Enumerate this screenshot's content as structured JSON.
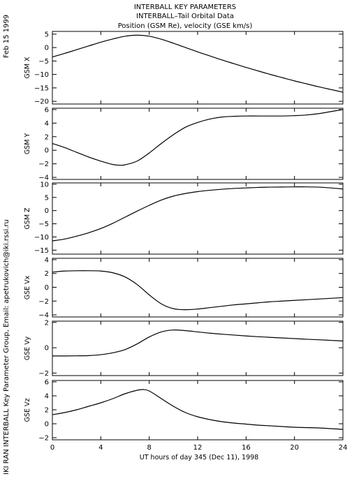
{
  "header": {
    "date": "Feb 15 1999",
    "side_credit": "IKI RAN INTERBALL Key Parameter Group, Email: apetrukovich@iki.rssi.ru",
    "title_lines": [
      "INTERBALL KEY PARAMETERS",
      "INTERBALL–Tail Orbital Data",
      "Position (GSM Re), velocity (GSE km/s)"
    ]
  },
  "chart_data": {
    "type": "line",
    "xlabel": "UT hours of day 345 (Dec 11), 1998",
    "xlim": [
      0,
      24
    ],
    "xticks": [
      0,
      4,
      8,
      12,
      16,
      20,
      24
    ],
    "xtick_labels": [
      "0",
      "4",
      "8",
      "12",
      "16",
      "20",
      "24"
    ],
    "panels": [
      {
        "id": "gsm-x",
        "ylabel": "GSM X",
        "ylim": [
          -21,
          6
        ],
        "yticks": [
          5,
          0,
          -5,
          -10,
          -15,
          -20
        ],
        "ytick_labels": [
          "5",
          "0",
          "−5",
          "−10",
          "−15",
          "−20"
        ],
        "x": [
          0,
          1,
          2,
          3,
          4,
          5,
          6,
          7,
          8,
          9,
          10,
          11,
          12,
          13,
          14,
          15,
          16,
          17,
          18,
          19,
          20,
          21,
          22,
          23,
          24
        ],
        "values": [
          -3.5,
          -2.2,
          -0.8,
          0.6,
          2.0,
          3.2,
          4.2,
          4.6,
          4.2,
          3.1,
          1.6,
          0.0,
          -1.6,
          -3.1,
          -4.6,
          -6.0,
          -7.4,
          -8.7,
          -10.0,
          -11.2,
          -12.4,
          -13.5,
          -14.6,
          -15.6,
          -16.6
        ]
      },
      {
        "id": "gsm-y",
        "ylabel": "GSM Y",
        "ylim": [
          -4.3,
          6.2
        ],
        "yticks": [
          6,
          4,
          2,
          0,
          -2,
          -4
        ],
        "ytick_labels": [
          "6",
          "4",
          "2",
          "0",
          "−2",
          "−4"
        ],
        "x": [
          0,
          1,
          2,
          3,
          4,
          5,
          5.5,
          6,
          7,
          8,
          9,
          10,
          11,
          12,
          13,
          14,
          15,
          16,
          17,
          18,
          19,
          20,
          21,
          22,
          23,
          24
        ],
        "values": [
          1.0,
          0.4,
          -0.3,
          -1.0,
          -1.6,
          -2.1,
          -2.2,
          -2.15,
          -1.6,
          -0.4,
          1.0,
          2.3,
          3.4,
          4.1,
          4.6,
          4.9,
          5.0,
          5.05,
          5.05,
          5.05,
          5.05,
          5.1,
          5.2,
          5.4,
          5.7,
          6.0
        ]
      },
      {
        "id": "gsm-z",
        "ylabel": "GSM Z",
        "ylim": [
          -16.5,
          10.5
        ],
        "yticks": [
          10,
          5,
          0,
          -5,
          -10,
          -15
        ],
        "ytick_labels": [
          "10",
          "5",
          "0",
          "−5",
          "−10",
          "−15"
        ],
        "x": [
          0,
          1,
          2,
          3,
          4,
          5,
          6,
          7,
          8,
          9,
          10,
          11,
          12,
          13,
          14,
          15,
          16,
          17,
          18,
          19,
          20,
          21,
          22,
          23,
          24
        ],
        "values": [
          -11.5,
          -10.8,
          -9.7,
          -8.4,
          -6.8,
          -4.8,
          -2.5,
          -0.2,
          2.0,
          4.0,
          5.5,
          6.5,
          7.2,
          7.7,
          8.1,
          8.4,
          8.6,
          8.8,
          8.9,
          8.95,
          9.0,
          9.0,
          8.9,
          8.6,
          8.2
        ]
      },
      {
        "id": "gse-vx",
        "ylabel": "GSE Vx",
        "ylim": [
          -4.3,
          4.2
        ],
        "yticks": [
          4,
          2,
          0,
          -2,
          -4
        ],
        "ytick_labels": [
          "4",
          "2",
          "0",
          "−2",
          "−4"
        ],
        "x": [
          0,
          1,
          2,
          3,
          4,
          5,
          6,
          7,
          8,
          9,
          10,
          11,
          12,
          13,
          14,
          15,
          16,
          17,
          18,
          19,
          20,
          21,
          22,
          23,
          24
        ],
        "values": [
          2.2,
          2.35,
          2.4,
          2.4,
          2.35,
          2.1,
          1.5,
          0.4,
          -1.1,
          -2.4,
          -3.1,
          -3.25,
          -3.15,
          -2.95,
          -2.75,
          -2.55,
          -2.4,
          -2.25,
          -2.1,
          -2.0,
          -1.9,
          -1.8,
          -1.7,
          -1.6,
          -1.5
        ]
      },
      {
        "id": "gse-vy",
        "ylabel": "GSE Vy",
        "ylim": [
          -2.2,
          2.1
        ],
        "yticks": [
          2,
          0,
          -2
        ],
        "ytick_labels": [
          "2",
          "0",
          "−2"
        ],
        "x": [
          0,
          1,
          2,
          3,
          4,
          5,
          6,
          7,
          8,
          9,
          10,
          11,
          12,
          13,
          14,
          15,
          16,
          17,
          18,
          19,
          20,
          21,
          22,
          23,
          24
        ],
        "values": [
          -0.65,
          -0.65,
          -0.64,
          -0.62,
          -0.55,
          -0.4,
          -0.15,
          0.3,
          0.85,
          1.25,
          1.4,
          1.35,
          1.25,
          1.15,
          1.07,
          1.0,
          0.93,
          0.87,
          0.82,
          0.77,
          0.72,
          0.67,
          0.63,
          0.58,
          0.53
        ]
      },
      {
        "id": "gse-vz",
        "ylabel": "GSE Vz",
        "ylim": [
          -2.3,
          6.2
        ],
        "yticks": [
          6,
          4,
          2,
          0,
          -2
        ],
        "ytick_labels": [
          "6",
          "4",
          "2",
          "0",
          "−2"
        ],
        "x": [
          0,
          1,
          2,
          3,
          4,
          5,
          6,
          7,
          7.5,
          8,
          9,
          10,
          11,
          12,
          13,
          14,
          15,
          16,
          17,
          18,
          19,
          20,
          21,
          22,
          23,
          24
        ],
        "values": [
          1.3,
          1.6,
          2.0,
          2.5,
          3.0,
          3.6,
          4.3,
          4.8,
          4.9,
          4.7,
          3.6,
          2.5,
          1.6,
          1.0,
          0.6,
          0.3,
          0.1,
          -0.05,
          -0.2,
          -0.3,
          -0.4,
          -0.5,
          -0.55,
          -0.6,
          -0.7,
          -0.8
        ]
      }
    ]
  }
}
